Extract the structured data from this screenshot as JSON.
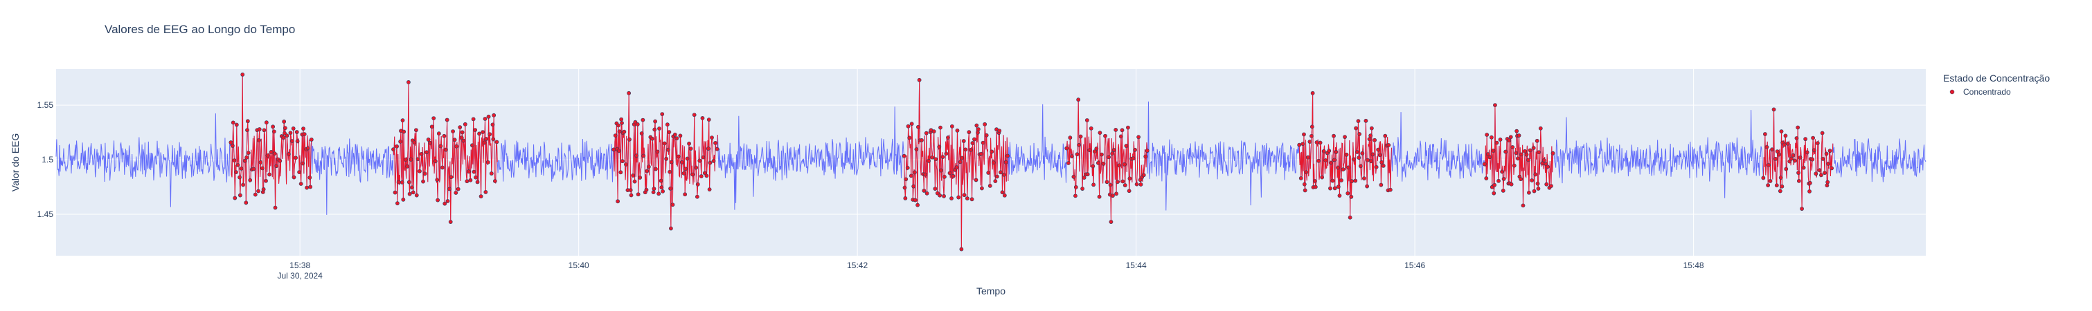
{
  "chart_data": {
    "type": "line",
    "title": "Valores de EEG ao Longo do Tempo",
    "xlabel": "Tempo",
    "ylabel": "Valor do EEG",
    "x_range": [
      "2024-07-30 15:36:15",
      "2024-07-30 15:49:40"
    ],
    "ylim": [
      1.412,
      1.583
    ],
    "x_ticks": [
      {
        "time": "2024-07-30 15:38:00",
        "label": "15:38",
        "sublabel": "Jul 30, 2024"
      },
      {
        "time": "2024-07-30 15:40:00",
        "label": "15:40",
        "sublabel": ""
      },
      {
        "time": "2024-07-30 15:42:00",
        "label": "15:42",
        "sublabel": ""
      },
      {
        "time": "2024-07-30 15:44:00",
        "label": "15:44",
        "sublabel": ""
      },
      {
        "time": "2024-07-30 15:46:00",
        "label": "15:46",
        "sublabel": ""
      },
      {
        "time": "2024-07-30 15:48:00",
        "label": "15:48",
        "sublabel": ""
      }
    ],
    "y_ticks": [
      {
        "value": 1.45,
        "label": "1.45"
      },
      {
        "value": 1.5,
        "label": "1.5"
      },
      {
        "value": 1.55,
        "label": "1.55"
      }
    ],
    "grid": true,
    "legend_position": "top-right",
    "legend_title": "Estado de Concentração",
    "baseline": 1.5,
    "base_amplitude": 0.022,
    "series": [
      {
        "kind": "line",
        "color": "#636efa",
        "description": "EEG signal, oscillating around 1.50 across full time range"
      },
      {
        "kind": "markers",
        "name": "Concentrado",
        "color": "#e8192c",
        "segments": [
          {
            "start": "2024-07-30 15:37:30",
            "end": "2024-07-30 15:38:05",
            "amplitude": 0.042,
            "peak": 1.578,
            "trough": 1.456
          },
          {
            "start": "2024-07-30 15:38:40",
            "end": "2024-07-30 15:39:25",
            "amplitude": 0.045,
            "peak": 1.571,
            "trough": 1.443
          },
          {
            "start": "2024-07-30 15:40:15",
            "end": "2024-07-30 15:41:00",
            "amplitude": 0.043,
            "peak": 1.561,
            "trough": 1.437
          },
          {
            "start": "2024-07-30 15:42:20",
            "end": "2024-07-30 15:43:05",
            "amplitude": 0.044,
            "peak": 1.573,
            "trough": 1.418
          },
          {
            "start": "2024-07-30 15:43:30",
            "end": "2024-07-30 15:44:05",
            "amplitude": 0.04,
            "peak": 1.555,
            "trough": 1.443
          },
          {
            "start": "2024-07-30 15:45:10",
            "end": "2024-07-30 15:45:50",
            "amplitude": 0.038,
            "peak": 1.561,
            "trough": 1.447
          },
          {
            "start": "2024-07-30 15:46:30",
            "end": "2024-07-30 15:47:00",
            "amplitude": 0.032,
            "peak": 1.55,
            "trough": 1.458
          },
          {
            "start": "2024-07-30 15:48:30",
            "end": "2024-07-30 15:49:00",
            "amplitude": 0.035,
            "peak": 1.546,
            "trough": 1.455
          }
        ]
      }
    ]
  }
}
